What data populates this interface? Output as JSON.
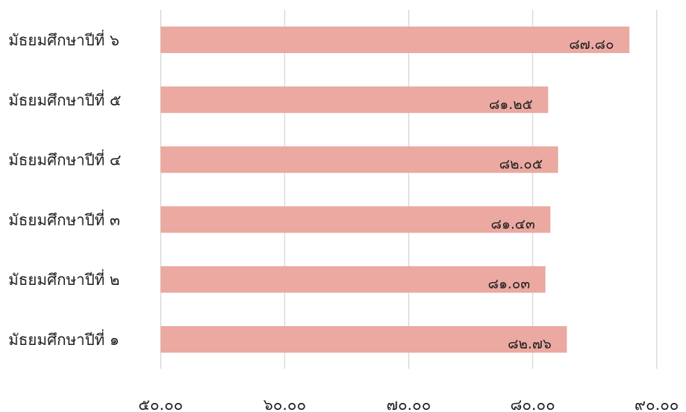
{
  "chart_data": {
    "type": "bar",
    "orientation": "horizontal",
    "categories": [
      "มัธยมศึกษาปีที่ ๖",
      "มัธยมศึกษาปีที่ ๕",
      "มัธยมศึกษาปีที่ ๔",
      "มัธยมศึกษาปีที่ ๓",
      "มัธยมศึกษาปีที่ ๒",
      "มัธยมศึกษาปีที่ ๑"
    ],
    "values": [
      87.8,
      81.25,
      82.05,
      81.43,
      81.03,
      82.76
    ],
    "value_labels": [
      "๘๗.๘๐",
      "๘๑.๒๕",
      "๘๒.๐๕",
      "๘๑.๔๓",
      "๘๑.๐๓",
      "๘๒.๗๖"
    ],
    "xlim": [
      50,
      90
    ],
    "x_ticks": [
      50,
      60,
      70,
      80,
      90
    ],
    "x_tick_labels": [
      "๕๐.๐๐",
      "๖๐.๐๐",
      "๗๐.๐๐",
      "๘๐.๐๐",
      "๙๐.๐๐"
    ],
    "grid": true,
    "legend": false,
    "bar_color": "#EBA9A1",
    "grid_color": "#D9D9D9",
    "title": "",
    "xlabel": "",
    "ylabel": ""
  }
}
